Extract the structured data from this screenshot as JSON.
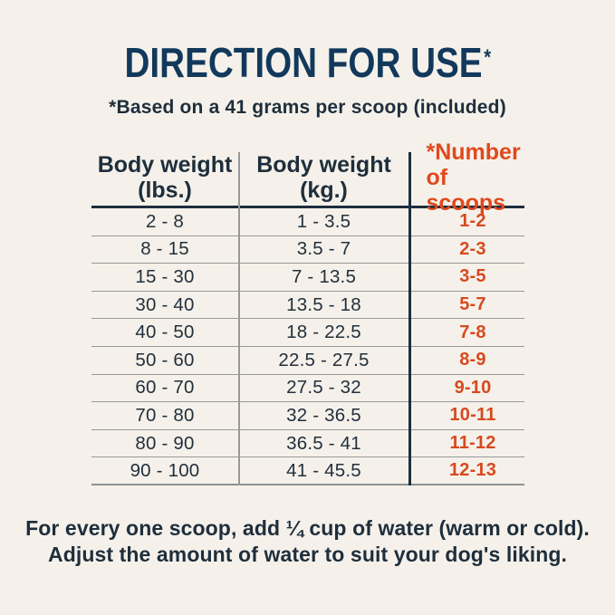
{
  "title": {
    "text": "DIRECTION FOR USE",
    "asterisk": "*"
  },
  "subtitle": "*Based on a 41 grams per scoop (included)",
  "table": {
    "columns": [
      {
        "line1": "Body weight",
        "line2": "(lbs.)"
      },
      {
        "line1": "Body weight",
        "line2": "(kg.)"
      },
      {
        "line1": "*Number",
        "line2": "of scoops"
      }
    ],
    "rows": [
      {
        "lbs": "2 - 8",
        "kg": "1 - 3.5",
        "scoops": "1-2"
      },
      {
        "lbs": "8 - 15",
        "kg": "3.5 - 7",
        "scoops": "2-3"
      },
      {
        "lbs": "15 - 30",
        "kg": "7 - 13.5",
        "scoops": "3-5"
      },
      {
        "lbs": "30 - 40",
        "kg": "13.5 - 18",
        "scoops": "5-7"
      },
      {
        "lbs": "40 - 50",
        "kg": "18 - 22.5",
        "scoops": "7-8"
      },
      {
        "lbs": "50 - 60",
        "kg": "22.5 - 27.5",
        "scoops": "8-9"
      },
      {
        "lbs": "60 - 70",
        "kg": "27.5 - 32",
        "scoops": "9-10"
      },
      {
        "lbs": "70 - 80",
        "kg": "32 - 36.5",
        "scoops": "10-11"
      },
      {
        "lbs": "80 - 90",
        "kg": "36.5 - 41",
        "scoops": "11-12"
      },
      {
        "lbs": "90 - 100",
        "kg": "41 - 45.5",
        "scoops": "12-13"
      }
    ]
  },
  "footer": {
    "line1": "For every one scoop, add ¼ cup of water (warm or cold).",
    "line2": "Adjust the amount of water to suit your dog's liking."
  },
  "colors": {
    "background": "#f5f1ea",
    "title_navy": "#12395c",
    "text_dark": "#1e2e3c",
    "accent_orange": "#e0491d",
    "line_gray": "#96989a",
    "line_navy": "#1d2e3d"
  },
  "chart_data": {
    "type": "table",
    "title": "DIRECTION FOR USE*",
    "subtitle": "*Based on a 41 grams per scoop (included)",
    "columns": [
      "Body weight (lbs.)",
      "Body weight (kg.)",
      "*Number of scoops"
    ],
    "rows": [
      [
        "2 - 8",
        "1 - 3.5",
        "1-2"
      ],
      [
        "8 - 15",
        "3.5 - 7",
        "2-3"
      ],
      [
        "15 - 30",
        "7 - 13.5",
        "3-5"
      ],
      [
        "30 - 40",
        "13.5 - 18",
        "5-7"
      ],
      [
        "40 - 50",
        "18 - 22.5",
        "7-8"
      ],
      [
        "50 - 60",
        "22.5 - 27.5",
        "8-9"
      ],
      [
        "60 - 70",
        "27.5 - 32",
        "9-10"
      ],
      [
        "70 - 80",
        "32 - 36.5",
        "10-11"
      ],
      [
        "80 - 90",
        "36.5 - 41",
        "11-12"
      ],
      [
        "90 - 100",
        "41 - 45.5",
        "12-13"
      ]
    ],
    "annotations": [
      "For every one scoop, add ¼ cup of water (warm or cold).",
      "Adjust the amount of water to suit your dog's liking."
    ]
  }
}
